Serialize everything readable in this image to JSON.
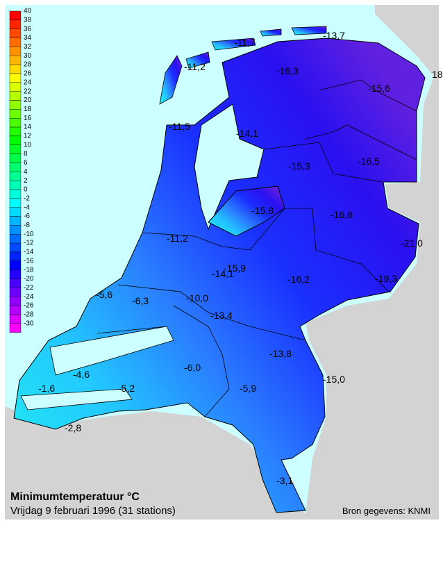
{
  "title": "Minimumtemperatuur °C",
  "subtitle": "Vrijdag 9 februari 1996 (31 stations)",
  "source": "Bron gegevens: KNMI",
  "legend": {
    "values": [
      40,
      38,
      36,
      34,
      32,
      30,
      28,
      26,
      24,
      22,
      20,
      18,
      16,
      14,
      12,
      10,
      8,
      6,
      4,
      2,
      0,
      -2,
      -4,
      -6,
      -8,
      -10,
      -12,
      -14,
      -16,
      -18,
      -20,
      -22,
      -24,
      -26,
      -28,
      -30
    ]
  },
  "stations": [
    "-11,7",
    "-13,7",
    "-11,2",
    "-16,3",
    "18",
    "-15,6",
    "-11,5",
    "-14,1",
    "-15,3",
    "-16,5",
    "-15,8",
    "-16,6",
    "-21,0",
    "-11,2",
    "-15,9",
    "-14,1",
    "-16,2",
    "-19,3",
    "-5,6",
    "-6,3",
    "-10,0",
    "-13,4",
    "-13,8",
    "-6,0",
    "-15,0",
    "-4,6",
    "-1,6",
    "-5,2",
    "-5,9",
    "-2,8",
    "-3,1"
  ]
}
